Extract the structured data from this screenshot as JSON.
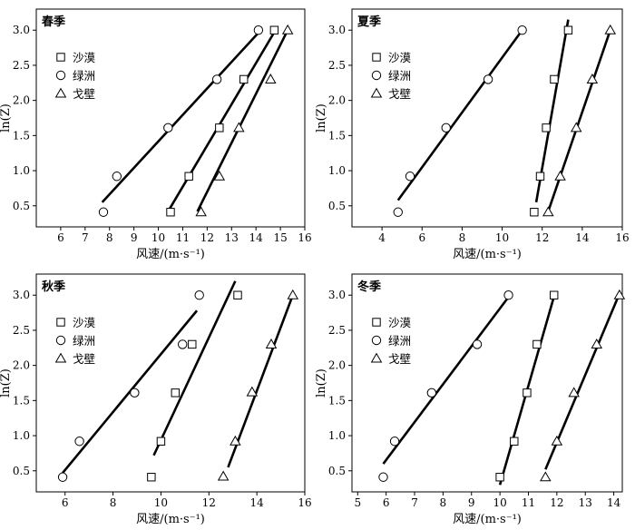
{
  "figure": {
    "ylabel": "ln(Z)",
    "xlabel": "风速/(m·s⁻¹)"
  },
  "chart_data": [
    {
      "type": "scatter",
      "title": "春季",
      "xlabel": "风速/(m·s⁻¹)",
      "ylabel": "ln(Z)",
      "xlim": [
        5,
        16
      ],
      "ylim": [
        0.2,
        3.3
      ],
      "xticks": [
        6,
        7,
        8,
        9,
        10,
        11,
        12,
        13,
        14,
        15,
        16
      ],
      "yticks": [
        0.5,
        1.0,
        1.5,
        2.0,
        2.5,
        3.0
      ],
      "y": [
        0.41,
        0.92,
        1.61,
        2.3,
        3.0
      ],
      "legend": "top-left",
      "series": [
        {
          "name": "沙漠",
          "marker": "square",
          "x": [
            10.5,
            11.25,
            12.5,
            13.5,
            14.75
          ],
          "fit": [
            [
              10.4,
              0.42
            ],
            [
              14.8,
              3.0
            ]
          ]
        },
        {
          "name": "绿洲",
          "marker": "circle",
          "x": [
            7.75,
            8.3,
            10.4,
            12.4,
            14.1
          ],
          "fit": [
            [
              7.7,
              0.55
            ],
            [
              14.2,
              3.0
            ]
          ]
        },
        {
          "name": "戈壁",
          "marker": "triangle",
          "x": [
            11.75,
            12.5,
            13.3,
            14.6,
            15.3
          ],
          "fit": [
            [
              11.6,
              0.42
            ],
            [
              15.3,
              3.0
            ]
          ]
        }
      ]
    },
    {
      "type": "scatter",
      "title": "夏季",
      "xlabel": "风速/(m·s⁻¹)",
      "ylabel": "ln(Z)",
      "xlim": [
        2.5,
        16
      ],
      "ylim": [
        0.2,
        3.3
      ],
      "xticks": [
        4,
        6,
        8,
        10,
        12,
        14,
        16
      ],
      "yticks": [
        0.5,
        1.0,
        1.5,
        2.0,
        2.5,
        3.0
      ],
      "y": [
        0.41,
        0.92,
        1.61,
        2.3,
        3.0
      ],
      "legend": "top-left",
      "series": [
        {
          "name": "沙漠",
          "marker": "square",
          "x": [
            11.6,
            11.9,
            12.2,
            12.6,
            13.3
          ],
          "fit": [
            [
              11.7,
              0.55
            ],
            [
              13.3,
              3.15
            ]
          ]
        },
        {
          "name": "绿洲",
          "marker": "circle",
          "x": [
            4.8,
            5.4,
            7.2,
            9.3,
            11.0
          ],
          "fit": [
            [
              4.8,
              0.58
            ],
            [
              11.0,
              3.0
            ]
          ]
        },
        {
          "name": "戈壁",
          "marker": "triangle",
          "x": [
            12.3,
            12.9,
            13.7,
            14.5,
            15.4
          ],
          "fit": [
            [
              12.3,
              0.42
            ],
            [
              15.4,
              3.0
            ]
          ]
        }
      ]
    },
    {
      "type": "scatter",
      "title": "秋季",
      "xlabel": "风速/(m·s⁻¹)",
      "ylabel": "ln(Z)",
      "xlim": [
        4.8,
        16
      ],
      "ylim": [
        0.2,
        3.3
      ],
      "xticks": [
        6,
        8,
        10,
        12,
        14,
        16
      ],
      "yticks": [
        0.5,
        1.0,
        1.5,
        2.0,
        2.5,
        3.0
      ],
      "legend": "top-left",
      "series": [
        {
          "name": "沙漠",
          "marker": "square",
          "x": [
            9.6,
            10.0,
            10.6,
            11.3,
            13.2
          ],
          "y": [
            0.41,
            0.92,
            1.61,
            2.3,
            3.0
          ],
          "fit": [
            [
              9.7,
              0.72
            ],
            [
              13.1,
              3.2
            ]
          ]
        },
        {
          "name": "绿洲",
          "marker": "circle",
          "x": [
            5.9,
            6.6,
            8.9,
            10.9,
            11.6
          ],
          "y": [
            0.41,
            0.92,
            1.61,
            2.3,
            3.0
          ],
          "fit": [
            [
              5.9,
              0.47
            ],
            [
              11.5,
              2.78
            ]
          ]
        },
        {
          "name": "戈壁",
          "marker": "triangle",
          "x": [
            12.6,
            13.1,
            13.8,
            14.6,
            15.5
          ],
          "y": [
            0.42,
            0.92,
            1.62,
            2.3,
            3.0
          ],
          "fit": [
            [
              12.8,
              0.55
            ],
            [
              15.5,
              3.0
            ]
          ]
        }
      ]
    },
    {
      "type": "scatter",
      "title": "冬季",
      "xlabel": "风速/(m·s⁻¹)",
      "ylabel": "ln(Z)",
      "xlim": [
        4.8,
        14.3
      ],
      "ylim": [
        0.2,
        3.3
      ],
      "xticks": [
        5,
        6,
        7,
        8,
        9,
        10,
        11,
        12,
        13,
        14
      ],
      "yticks": [
        0.5,
        1.0,
        1.5,
        2.0,
        2.5,
        3.0
      ],
      "y": [
        0.41,
        0.92,
        1.61,
        2.3,
        3.0
      ],
      "legend": "top-left",
      "series": [
        {
          "name": "沙漠",
          "marker": "square",
          "x": [
            10.0,
            10.5,
            10.95,
            11.3,
            11.9
          ],
          "fit": [
            [
              10.0,
              0.3
            ],
            [
              11.9,
              2.98
            ]
          ]
        },
        {
          "name": "绿洲",
          "marker": "circle",
          "x": [
            5.9,
            6.3,
            7.6,
            9.2,
            10.3
          ],
          "fit": [
            [
              5.9,
              0.6
            ],
            [
              10.35,
              3.0
            ]
          ]
        },
        {
          "name": "戈壁",
          "marker": "triangle",
          "x": [
            11.6,
            12.0,
            12.6,
            13.4,
            14.2
          ],
          "fit": [
            [
              11.6,
              0.52
            ],
            [
              14.2,
              3.02
            ]
          ]
        }
      ]
    }
  ]
}
